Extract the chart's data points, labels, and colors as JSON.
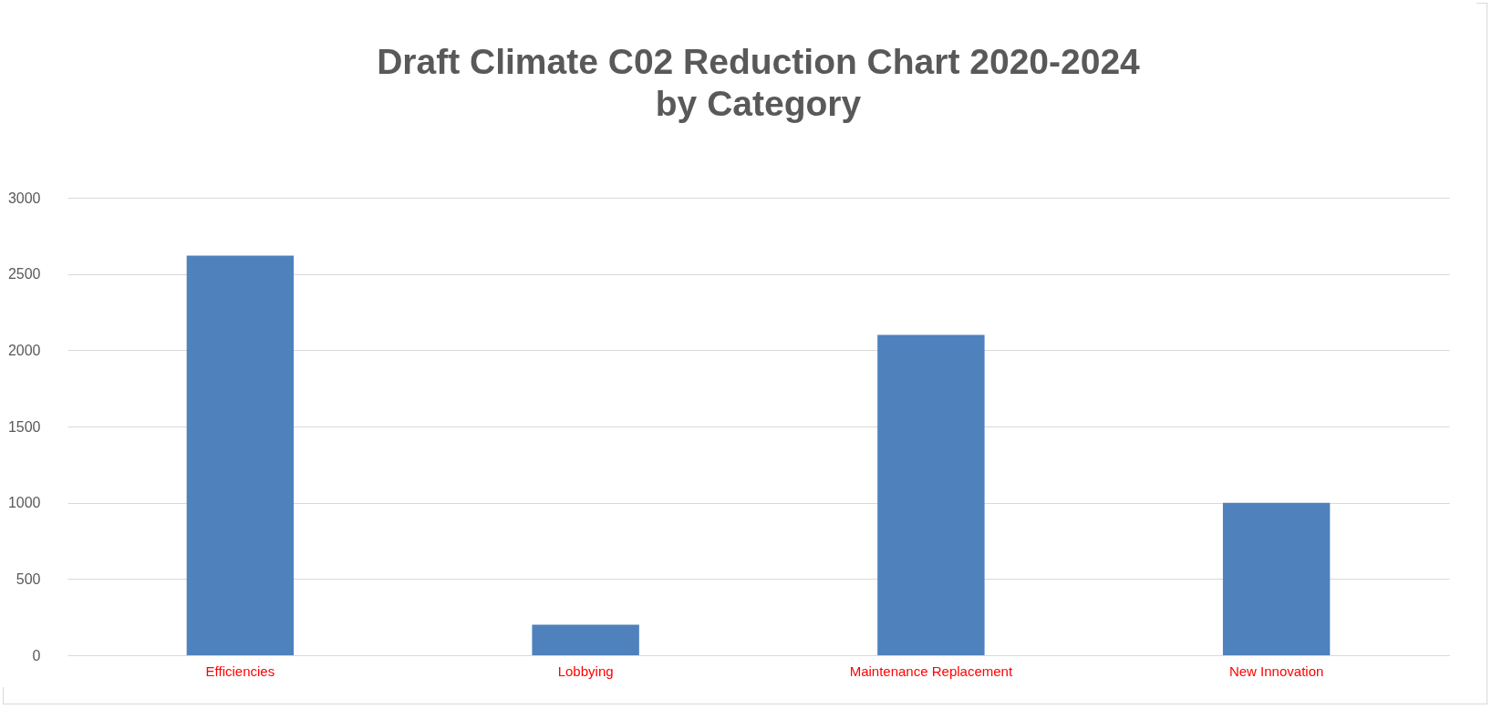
{
  "chart_data": {
    "type": "bar",
    "title": "Draft Climate C02 Reduction Chart 2020-2024\nby Category",
    "categories": [
      "Efficiencies",
      "Lobbying",
      "Maintenance Replacement",
      "New Innovation"
    ],
    "values": [
      2620,
      200,
      2100,
      1000
    ],
    "color": "#4f81bd",
    "ylim": [
      0,
      3000
    ],
    "yticks": [
      0,
      500,
      1000,
      1500,
      2000,
      2500,
      3000
    ],
    "grid": "y"
  }
}
